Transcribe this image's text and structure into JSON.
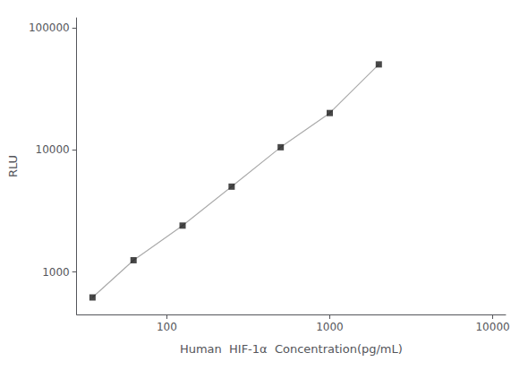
{
  "chart_data": {
    "type": "line",
    "x_label": "Human  HIF-1α  Concentration(pg/mL)",
    "y_label": "RLU",
    "x": [
      35,
      62.5,
      125,
      250,
      500,
      1000,
      2000
    ],
    "series": [
      {
        "type": "line",
        "color": "#aaaaaa",
        "line_style": "solid",
        "values": [
          620,
          1250,
          2400,
          5000,
          10500,
          20000,
          50000
        ]
      },
      {
        "type": "scatter",
        "color": "#1a1a1a",
        "marker": "square",
        "values": [
          620,
          1250,
          2400,
          5000,
          10500,
          20000,
          50000
        ]
      }
    ],
    "xlim": [
      28,
      12000
    ],
    "ylim": [
      450,
      120000
    ],
    "xticks": [
      100,
      1000,
      10000
    ],
    "yticks": [
      1000,
      10000,
      100000
    ],
    "log": true,
    "grid": false
  }
}
